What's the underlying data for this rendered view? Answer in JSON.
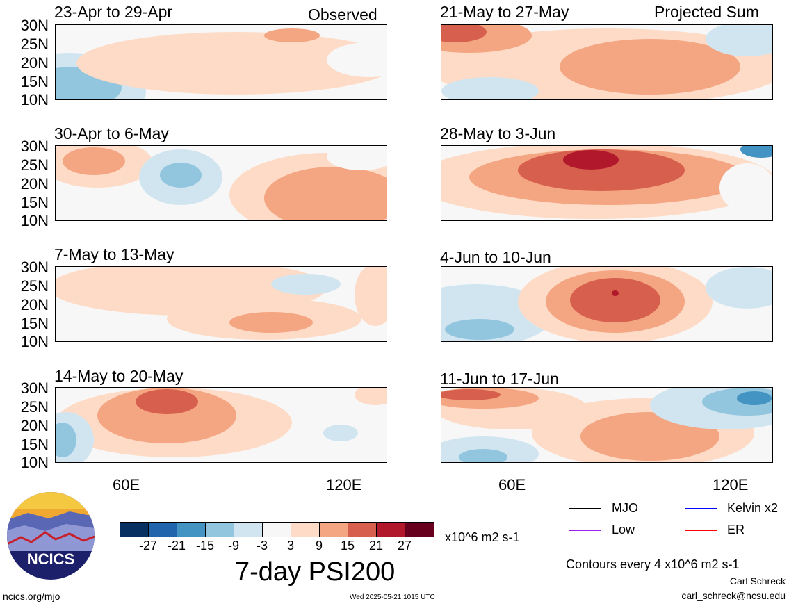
{
  "panels": [
    {
      "title": "23-Apr to 29-Apr",
      "right": "Observed"
    },
    {
      "title": "21-May to 27-May",
      "right": "Projected Sum"
    },
    {
      "title": "30-Apr to 6-May",
      "right": ""
    },
    {
      "title": "28-May to 3-Jun",
      "right": ""
    },
    {
      "title": "7-May to 13-May",
      "right": ""
    },
    {
      "title": "4-Jun to 10-Jun",
      "right": ""
    },
    {
      "title": "14-May to 20-May",
      "right": ""
    },
    {
      "title": "11-Jun to 17-Jun",
      "right": ""
    }
  ],
  "lat_labels": [
    "30N",
    "25N",
    "20N",
    "15N",
    "10N"
  ],
  "lon_labels": [
    "60E",
    "120E"
  ],
  "colorbar": {
    "colors": [
      "#053061",
      "#2166ac",
      "#4393c3",
      "#92c5de",
      "#d1e5f0",
      "#f7f7f7",
      "#fddbc7",
      "#f4a582",
      "#d6604d",
      "#b2182b",
      "#67001f"
    ],
    "ticks": [
      "-27",
      "-21",
      "-15",
      "-9",
      "-3",
      "3",
      "9",
      "15",
      "21",
      "27"
    ]
  },
  "units": "x10^6 m2 s-1",
  "main_title": "7-day PSI200",
  "legend": {
    "mjo": "MJO",
    "kelvin": "Kelvin x2",
    "low": "Low",
    "er": "ER",
    "colors": {
      "mjo": "#000000",
      "kelvin": "#0000ff",
      "low": "#a020f0",
      "er": "#ff0000"
    }
  },
  "contours_note": "Contours every 4 x10^6 m2 s-1",
  "author": "Carl Schreck",
  "email": "carl_schreck@ncsu.edu",
  "site": "ncics.org/mjo",
  "timestamp": "Wed 2025-05-21 1015 UTC",
  "logo": {
    "text": "NCICS"
  }
}
